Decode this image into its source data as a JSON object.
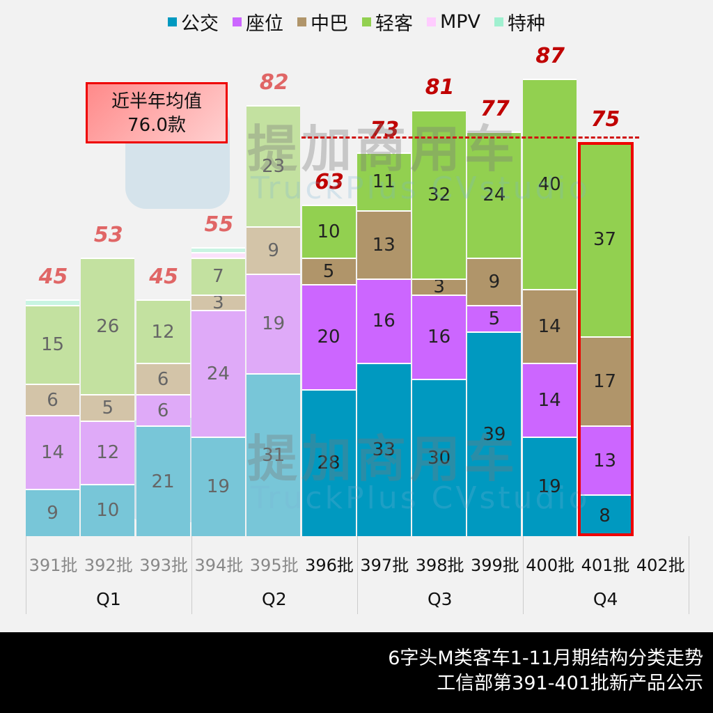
{
  "legend": [
    {
      "label": "公交",
      "color": "#0099c0"
    },
    {
      "label": "座位",
      "color": "#cc66ff"
    },
    {
      "label": "中巴",
      "color": "#b0956a"
    },
    {
      "label": "轻客",
      "color": "#92d050"
    },
    {
      "label": "MPV",
      "color": "#ffccff"
    },
    {
      "label": "特种",
      "color": "#a0f0d0"
    }
  ],
  "avg_box": {
    "line1": "近半年均值",
    "line2": "76.0款"
  },
  "watermark": {
    "cn": "提加商用车",
    "en": "TruckPlus CVstudio"
  },
  "footer": {
    "line1": "6字头M类客车1-11月期结构分类走势",
    "line2": "工信部第391-401批新产品公示"
  },
  "quarters": [
    "Q1",
    "Q2",
    "Q3",
    "Q4"
  ],
  "chart_data": {
    "type": "bar",
    "stacked": true,
    "title": "6字头M类客车1-11月期结构分类走势",
    "subtitle": "工信部第391-401批新产品公示",
    "categories": [
      "391批",
      "392批",
      "393批",
      "394批",
      "395批",
      "396批",
      "397批",
      "398批",
      "399批",
      "400批",
      "401批",
      "402批"
    ],
    "groups": [
      {
        "label": "Q1",
        "categories": [
          "391批",
          "392批",
          "393批"
        ]
      },
      {
        "label": "Q2",
        "categories": [
          "394批",
          "395批",
          "396批"
        ]
      },
      {
        "label": "Q3",
        "categories": [
          "397批",
          "398批",
          "399批"
        ]
      },
      {
        "label": "Q4",
        "categories": [
          "400批",
          "401批",
          "402批"
        ]
      }
    ],
    "series": [
      {
        "name": "公交",
        "color": "#0099c0",
        "values": [
          9,
          10,
          21,
          19,
          31,
          28,
          33,
          30,
          39,
          19,
          8,
          null
        ]
      },
      {
        "name": "座位",
        "color": "#cc66ff",
        "values": [
          14,
          12,
          6,
          24,
          19,
          20,
          16,
          16,
          5,
          14,
          13,
          null
        ]
      },
      {
        "name": "中巴",
        "color": "#b0956a",
        "values": [
          6,
          5,
          6,
          3,
          9,
          5,
          13,
          3,
          9,
          14,
          17,
          null
        ]
      },
      {
        "name": "轻客",
        "color": "#92d050",
        "values": [
          15,
          26,
          12,
          7,
          23,
          10,
          11,
          32,
          24,
          40,
          37,
          null
        ]
      },
      {
        "name": "MPV",
        "color": "#ffccff",
        "values": [
          0,
          0,
          0,
          1,
          0,
          0,
          0,
          0,
          0,
          0,
          0,
          null
        ]
      },
      {
        "name": "特种",
        "color": "#a0f0d0",
        "values": [
          1,
          0,
          0,
          1,
          0,
          0,
          0,
          0,
          0,
          0,
          0,
          null
        ]
      }
    ],
    "totals": [
      45,
      53,
      45,
      55,
      82,
      63,
      73,
      81,
      77,
      87,
      75,
      null
    ],
    "faded_categories": [
      "391批",
      "392批",
      "393批",
      "394批",
      "395批"
    ],
    "highlighted_category": "401批",
    "reference_line": {
      "label": "近半年均值",
      "value": 76.0,
      "unit": "款"
    },
    "legend_position": "top",
    "grid": false,
    "xlabel": "",
    "ylabel": ""
  }
}
